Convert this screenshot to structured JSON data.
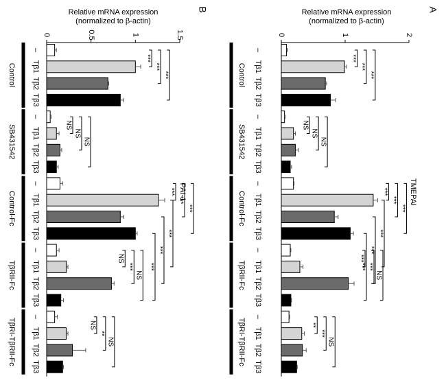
{
  "chart_data": [
    {
      "type": "bar",
      "panel": "A",
      "title": "TMEPAI",
      "ylabel": [
        "Relative mRNA expression",
        "(normalized to β-actin)"
      ],
      "groups": [
        "Control",
        "SB431542",
        "Control-Fc",
        "TβRII-Fc",
        "TβRI-TβRII-Fc"
      ],
      "categories": [
        "–",
        "Tβ1",
        "Tβ2",
        "Tβ3",
        "–",
        "Tβ1",
        "Tβ2",
        "Tβ3",
        "–",
        "Tβ1",
        "Tβ2",
        "Tβ3",
        "–",
        "Tβ1",
        "Tβ2",
        "Tβ3",
        "–",
        "Tβ1",
        "Tβ2",
        "Tβ3"
      ],
      "values": [
        0.08,
        0.99,
        0.69,
        0.77,
        0.05,
        0.19,
        0.22,
        0.14,
        0.19,
        1.44,
        0.83,
        1.08,
        0.14,
        0.29,
        1.05,
        0.15,
        0.12,
        0.32,
        0.33,
        0.24
      ],
      "errors": [
        0.02,
        0.03,
        0.02,
        0.08,
        0.01,
        0.03,
        0.05,
        0.02,
        0.01,
        0.07,
        0.06,
        0.05,
        0.01,
        0.05,
        0.09,
        0.01,
        0.01,
        0.04,
        0.06,
        0.01
      ],
      "colors": [
        "#ffffff",
        "#d4d4d4",
        "#6b6b6b",
        "#000000"
      ],
      "ylim": [
        0,
        2
      ],
      "yticks": [
        0,
        1,
        2
      ],
      "significance": [
        [
          "***",
          "***",
          "***"
        ],
        [
          "NS",
          "NS",
          "NS"
        ],
        [
          "***",
          "***",
          "***"
        ],
        [
          "***",
          "***",
          "NS"
        ],
        [
          "**",
          "***",
          "NS"
        ]
      ],
      "between": [
        "***",
        "***",
        "***"
      ]
    },
    {
      "type": "bar",
      "panel": "B",
      "title": "PAI-1",
      "ylabel": [
        "Relative mRNA expression",
        "(normalized to β-actin)"
      ],
      "groups": [
        "Control",
        "SB431542",
        "Control-Fc",
        "TβRII-Fc",
        "TβRI-TβRII-Fc"
      ],
      "categories": [
        "–",
        "Tβ1",
        "Tβ2",
        "Tβ3",
        "–",
        "Tβ1",
        "Tβ2",
        "Tβ3",
        "–",
        "Tβ1",
        "Tβ2",
        "Tβ3",
        "–",
        "Tβ1",
        "Tβ2",
        "Tβ3",
        "–",
        "Tβ1",
        "Tβ2",
        "Tβ3"
      ],
      "values": [
        0.09,
        1.0,
        0.69,
        0.83,
        0.04,
        0.11,
        0.15,
        0.11,
        0.15,
        1.26,
        0.83,
        1.0,
        0.11,
        0.22,
        0.73,
        0.16,
        0.09,
        0.22,
        0.29,
        0.18
      ],
      "errors": [
        0.02,
        0.06,
        0.01,
        0.04,
        0.01,
        0.03,
        0.02,
        0.02,
        0.03,
        0.07,
        0.04,
        0.02,
        0.03,
        0.02,
        0.03,
        0.03,
        0.03,
        0.02,
        0.15,
        0.01
      ],
      "colors": [
        "#ffffff",
        "#d4d4d4",
        "#6b6b6b",
        "#000000"
      ],
      "ylim": [
        0,
        1.5
      ],
      "yticks": [
        0,
        0.5,
        1,
        1.5
      ],
      "significance": [
        [
          "***",
          "***",
          "***"
        ],
        [
          "NS",
          "NS",
          "NS"
        ],
        [
          "***",
          "***",
          "***"
        ],
        [
          "NS",
          "***",
          "NS"
        ],
        [
          "NS",
          "**",
          "NS"
        ]
      ],
      "between": [
        "***",
        "***",
        "***"
      ]
    }
  ]
}
